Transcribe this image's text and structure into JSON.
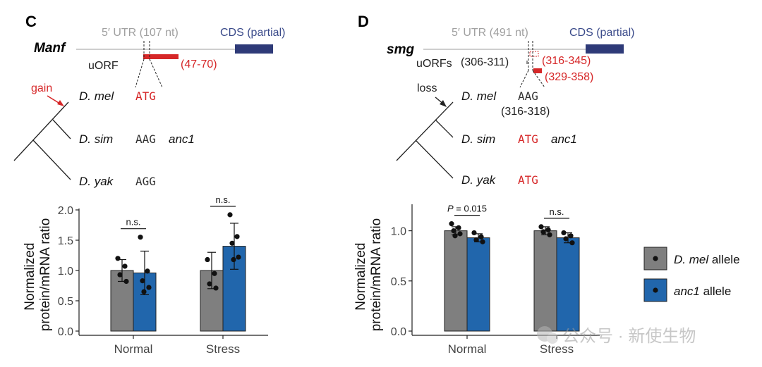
{
  "figure": {
    "watermark": "公众号 · 新使生物"
  },
  "legend": {
    "items": [
      {
        "allele": "D. mel",
        "suffix": " allele",
        "color": "#7f7f7f"
      },
      {
        "allele": "anc1",
        "suffix": " allele",
        "color": "#2166ac"
      }
    ]
  },
  "panels": [
    {
      "letter": "C",
      "gene": "Manf",
      "utr_label": "5′ UTR (107 nt)",
      "cds_label": "CDS (partial)",
      "uorf_label": "uORF",
      "uorf_ranges": [
        "(47-70)"
      ],
      "event": "gain",
      "species": [
        {
          "name": "D. mel",
          "codon": "ATG",
          "codon_color": "#d62728",
          "note": ""
        },
        {
          "name": "D. sim",
          "codon": "AAG",
          "codon_color": "#333333",
          "note": "anc1"
        },
        {
          "name": "D. yak",
          "codon": "AGG",
          "codon_color": "#333333",
          "note": ""
        }
      ]
    },
    {
      "letter": "D",
      "gene": "smg",
      "utr_label": "5′ UTR (491 nt)",
      "cds_label": "CDS (partial)",
      "uorf_label": "uORFs",
      "uorf_ranges": [
        "(306-311)",
        "(316-345)",
        "(329-358)"
      ],
      "event": "loss",
      "codon_position": "(316-318)",
      "species": [
        {
          "name": "D. mel",
          "codon": "AAG",
          "codon_color": "#333333",
          "note": ""
        },
        {
          "name": "D. sim",
          "codon": "ATG",
          "codon_color": "#d62728",
          "note": "anc1"
        },
        {
          "name": "D. yak",
          "codon": "ATG",
          "codon_color": "#d62728",
          "note": ""
        }
      ]
    }
  ],
  "chart_data": [
    {
      "type": "bar",
      "panel": "C",
      "title": "",
      "xlabel": "",
      "ylabel": "Normalized protein/mRNA ratio",
      "ylim": [
        0,
        2.0
      ],
      "yticks": [
        "0.0",
        "0.5",
        "1.0",
        "1.5",
        "2.0"
      ],
      "categories": [
        "Normal",
        "Stress"
      ],
      "series": [
        {
          "name": "D. mel allele",
          "color": "#7f7f7f",
          "values": [
            1.0,
            1.0
          ],
          "sd": [
            0.18,
            0.3
          ],
          "points": [
            [
              1.2,
              1.07,
              0.93,
              0.82
            ],
            [
              1.18,
              0.95,
              0.78,
              0.71
            ]
          ]
        },
        {
          "name": "anc1 allele",
          "color": "#2166ac",
          "values": [
            0.96,
            1.4
          ],
          "sd": [
            0.36,
            0.38
          ],
          "points": [
            [
              1.55,
              0.99,
              0.83,
              0.72,
              0.65
            ],
            [
              1.92,
              1.56,
              1.45,
              1.22,
              1.18
            ]
          ]
        }
      ],
      "annotations": [
        "n.s.",
        "n.s."
      ]
    },
    {
      "type": "bar",
      "panel": "D",
      "title": "",
      "xlabel": "",
      "ylabel": "Normalized protein/mRNA ratio",
      "ylim": [
        0,
        1.25
      ],
      "yticks": [
        "0.0",
        "0.5",
        "1.0"
      ],
      "categories": [
        "Normal",
        "Stress"
      ],
      "series": [
        {
          "name": "D. mel allele",
          "color": "#7f7f7f",
          "values": [
            1.0,
            1.0
          ],
          "sd": [
            0.04,
            0.04
          ],
          "points": [
            [
              1.07,
              1.03,
              1.0,
              0.97,
              0.95
            ],
            [
              1.04,
              1.01,
              0.99,
              0.96
            ]
          ]
        },
        {
          "name": "anc1 allele",
          "color": "#2166ac",
          "values": [
            0.93,
            0.93
          ],
          "sd": [
            0.04,
            0.05
          ],
          "points": [
            [
              0.98,
              0.94,
              0.91,
              0.89
            ],
            [
              0.98,
              0.95,
              0.92,
              0.88
            ]
          ]
        }
      ],
      "annotations": [
        "P = 0.015",
        "n.s."
      ]
    }
  ]
}
